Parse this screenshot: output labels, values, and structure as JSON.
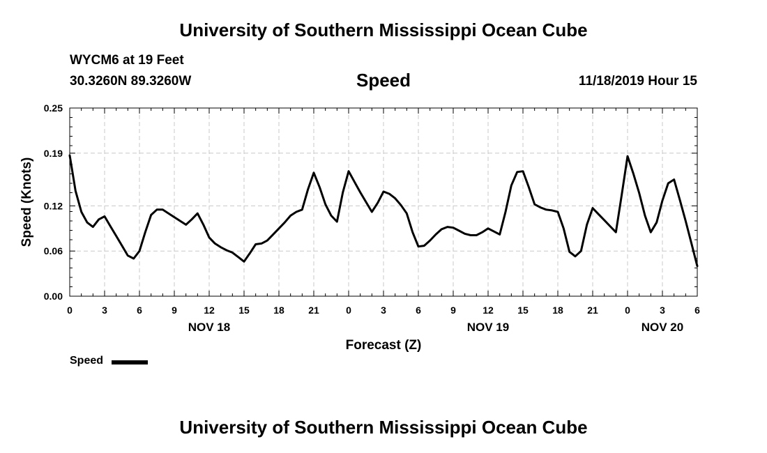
{
  "header": {
    "org_title": "University of Southern Mississippi Ocean Cube",
    "station": "WYCM6 at 19 Feet",
    "coordinates": "30.3260N 89.3260W",
    "chart_title": "Speed",
    "timestamp": "11/18/2019 Hour 15"
  },
  "footer": {
    "org_title": "University of Southern Mississippi Ocean Cube"
  },
  "legend": {
    "label": "Speed",
    "color": "#000000"
  },
  "chart_data": {
    "type": "line",
    "title": "Speed",
    "xlabel": "Forecast (Z)",
    "ylabel": "Speed (Knots)",
    "x_unit": "hours from NOV 18 00Z",
    "xlim": [
      0,
      54
    ],
    "ylim": [
      0.0,
      0.25
    ],
    "y_ticks": [
      "0.00",
      "0.06",
      "0.12",
      "0.19",
      "0.25"
    ],
    "x_ticks": [
      {
        "x": 0,
        "label": "0"
      },
      {
        "x": 3,
        "label": "3"
      },
      {
        "x": 6,
        "label": "6"
      },
      {
        "x": 9,
        "label": "9"
      },
      {
        "x": 12,
        "label": "12"
      },
      {
        "x": 15,
        "label": "15"
      },
      {
        "x": 18,
        "label": "18"
      },
      {
        "x": 21,
        "label": "21"
      },
      {
        "x": 24,
        "label": "0"
      },
      {
        "x": 27,
        "label": "3"
      },
      {
        "x": 30,
        "label": "6"
      },
      {
        "x": 33,
        "label": "9"
      },
      {
        "x": 36,
        "label": "12"
      },
      {
        "x": 39,
        "label": "15"
      },
      {
        "x": 42,
        "label": "18"
      },
      {
        "x": 45,
        "label": "21"
      },
      {
        "x": 48,
        "label": "0"
      },
      {
        "x": 51,
        "label": "3"
      },
      {
        "x": 54,
        "label": "6"
      }
    ],
    "day_labels": [
      {
        "x": 12,
        "label": "NOV 18"
      },
      {
        "x": 36,
        "label": "NOV 19"
      },
      {
        "x": 51,
        "label": "NOV 20"
      }
    ],
    "grid": true,
    "series": [
      {
        "name": "Speed",
        "color": "#000000",
        "x": [
          0,
          0.5,
          1,
          1.5,
          2,
          2.5,
          3,
          3.5,
          4,
          4.5,
          5,
          5.5,
          6,
          6.5,
          7,
          7.5,
          8,
          8.5,
          9,
          9.5,
          10,
          10.5,
          11,
          11.5,
          12,
          12.5,
          13,
          13.5,
          14,
          14.5,
          15,
          15.5,
          16,
          16.5,
          17,
          17.5,
          18,
          18.5,
          19,
          19.5,
          20,
          20.5,
          21,
          21.5,
          22,
          22.5,
          23,
          23.5,
          24,
          24.5,
          25,
          25.5,
          26,
          26.5,
          27,
          27.5,
          28,
          28.5,
          29,
          29.5,
          30,
          30.5,
          31,
          31.5,
          32,
          32.5,
          33,
          33.5,
          34,
          34.5,
          35,
          35.5,
          36,
          36.5,
          37,
          37.5,
          38,
          38.5,
          39,
          39.5,
          40,
          40.5,
          41,
          41.5,
          42,
          42.5,
          43,
          43.5,
          44,
          44.5,
          45,
          45.5,
          46,
          46.5,
          47,
          47.5,
          48,
          48.5,
          49,
          49.5,
          50,
          50.5,
          51,
          51.5,
          52,
          52.5,
          53,
          53.5,
          54
        ],
        "values": [
          0.187,
          0.14,
          0.112,
          0.098,
          0.092,
          0.102,
          0.106,
          0.093,
          0.08,
          0.067,
          0.054,
          0.05,
          0.06,
          0.085,
          0.108,
          0.115,
          0.115,
          0.11,
          0.105,
          0.1,
          0.095,
          0.102,
          0.11,
          0.095,
          0.078,
          0.07,
          0.065,
          0.061,
          0.058,
          0.052,
          0.046,
          0.057,
          0.069,
          0.07,
          0.074,
          0.082,
          0.09,
          0.098,
          0.107,
          0.112,
          0.115,
          0.142,
          0.164,
          0.145,
          0.122,
          0.107,
          0.099,
          0.138,
          0.166,
          0.152,
          0.138,
          0.125,
          0.112,
          0.124,
          0.139,
          0.136,
          0.13,
          0.121,
          0.11,
          0.085,
          0.066,
          0.067,
          0.074,
          0.082,
          0.089,
          0.092,
          0.091,
          0.087,
          0.083,
          0.081,
          0.081,
          0.085,
          0.09,
          0.086,
          0.082,
          0.112,
          0.147,
          0.165,
          0.166,
          0.145,
          0.122,
          0.118,
          0.115,
          0.114,
          0.112,
          0.09,
          0.059,
          0.053,
          0.06,
          0.095,
          0.117,
          0.109,
          0.101,
          0.093,
          0.085,
          0.135,
          0.186,
          0.163,
          0.137,
          0.107,
          0.085,
          0.098,
          0.127,
          0.15,
          0.155,
          0.128,
          0.1,
          0.07,
          0.04
        ]
      }
    ]
  }
}
